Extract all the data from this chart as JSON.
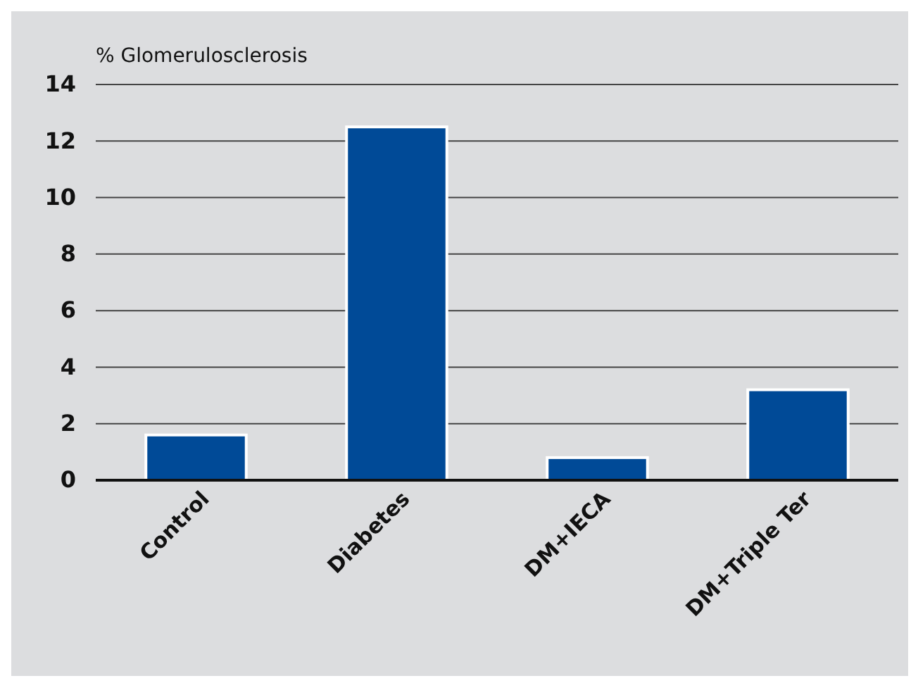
{
  "chart_data": {
    "type": "bar",
    "ylabel": "% Glomerulosclerosis",
    "categories": [
      "Control",
      "Diabetes",
      "DM+IECA",
      "DM+Triple Ter"
    ],
    "values": [
      1.6,
      12.5,
      0.8,
      3.2
    ],
    "color": "#004a97",
    "ylim": [
      0,
      14
    ],
    "yticks": [
      0,
      2,
      4,
      6,
      8,
      10,
      12,
      14
    ],
    "grid": "y"
  }
}
